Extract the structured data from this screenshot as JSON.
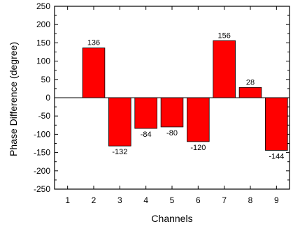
{
  "chart_data": {
    "type": "bar",
    "title": "",
    "xlabel": "Channels",
    "ylabel": "Phase Difference (degree)",
    "x_ticks": [
      "1",
      "2",
      "3",
      "4",
      "5",
      "6",
      "7",
      "8",
      "9"
    ],
    "y_ticks": [
      "250",
      "200",
      "150",
      "100",
      "50",
      "0",
      "-50",
      "-100",
      "-150",
      "-200",
      "-250"
    ],
    "ylim": [
      -250,
      250
    ],
    "xlim": [
      0.5,
      9.5
    ],
    "grid": false,
    "bar_color": "#ff0000",
    "bar_edge_color": "#000000",
    "series": [
      {
        "x": [
          2,
          3,
          4,
          5,
          6,
          7,
          8,
          9
        ],
        "values": [
          136,
          -132,
          -84,
          -80,
          -120,
          156,
          28,
          -144
        ],
        "labels": [
          "136",
          "-132",
          "-84",
          "-80",
          "-120",
          "156",
          "28",
          "-144"
        ]
      }
    ]
  }
}
